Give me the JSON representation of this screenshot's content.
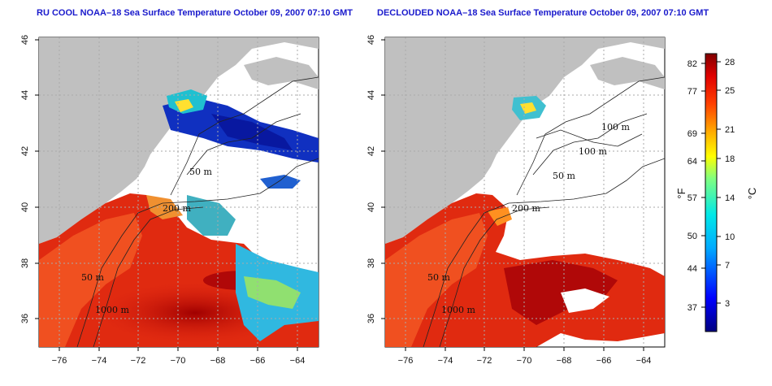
{
  "left_map": {
    "title": "RU COOL NOAA–18 Sea Surface Temperature October 09, 2007 07:10 GMT"
  },
  "right_map": {
    "title": "DECLOUDED NOAA–18 Sea Surface Temperature October 09, 2007 07:10 GMT"
  },
  "axes": {
    "x_ticks": [
      "−76",
      "−74",
      "−72",
      "−70",
      "−68",
      "−66",
      "−64"
    ],
    "y_ticks": [
      "36",
      "38",
      "40",
      "42",
      "44",
      "46"
    ]
  },
  "contour_labels": {
    "left": [
      "50 m",
      "200 m",
      "50 m",
      "1000 m"
    ],
    "right": [
      "100 m",
      "100 m",
      "50 m",
      "200 m",
      "50 m",
      "1000 m"
    ]
  },
  "colorbar": {
    "fahrenheit_ticks": [
      "82",
      "77",
      "69",
      "64",
      "57",
      "50",
      "44",
      "37"
    ],
    "celsius_ticks": [
      "28",
      "25",
      "21",
      "18",
      "14",
      "10",
      "7",
      "3"
    ],
    "fahrenheit_unit": "°F",
    "celsius_unit": "°C"
  },
  "colors": {
    "land": "#c0c0c0",
    "warm": "#d01010",
    "cool": "#1030c0",
    "grid": "#aaaaaa"
  }
}
